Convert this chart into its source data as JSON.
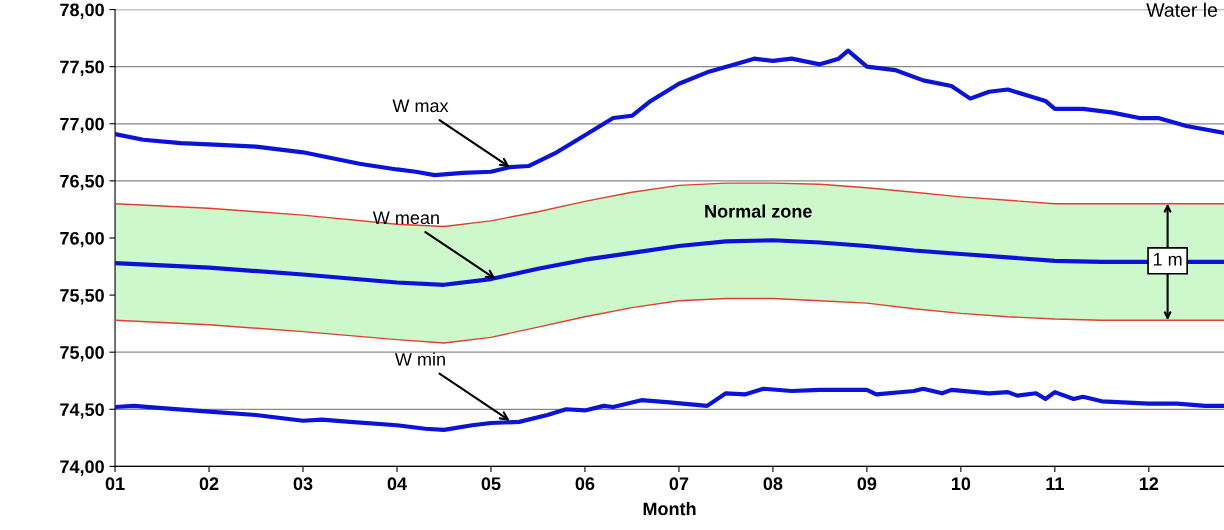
{
  "chart_data": {
    "type": "line",
    "title": "Water le",
    "xlabel": "Month",
    "xlim": [
      1,
      12.8
    ],
    "xticks": [
      {
        "value": 1,
        "label": "01"
      },
      {
        "value": 2,
        "label": "02"
      },
      {
        "value": 3,
        "label": "03"
      },
      {
        "value": 4,
        "label": "04"
      },
      {
        "value": 5,
        "label": "05"
      },
      {
        "value": 6,
        "label": "06"
      },
      {
        "value": 7,
        "label": "07"
      },
      {
        "value": 8,
        "label": "08"
      },
      {
        "value": 9,
        "label": "09"
      },
      {
        "value": 10,
        "label": "10"
      },
      {
        "value": 11,
        "label": "11"
      },
      {
        "value": 12,
        "label": "12"
      }
    ],
    "ylim": [
      74,
      78
    ],
    "yticks": [
      {
        "value": 74,
        "label": "74,00"
      },
      {
        "value": 74.5,
        "label": "74,50"
      },
      {
        "value": 75,
        "label": "75,00"
      },
      {
        "value": 75.5,
        "label": "75,50"
      },
      {
        "value": 76,
        "label": "76,00"
      },
      {
        "value": 76.5,
        "label": "76,50"
      },
      {
        "value": 77,
        "label": "77,00"
      },
      {
        "value": 77.5,
        "label": "77,50"
      },
      {
        "value": 78,
        "label": "78,00"
      }
    ],
    "grid": "y",
    "marker": "none",
    "line_style": "solid",
    "series": [
      {
        "color": "#0a14d8",
        "x": [
          1,
          1.3,
          1.7,
          2,
          2.5,
          3,
          3.3,
          3.6,
          4,
          4.2,
          4.4,
          4.7,
          5,
          5.2,
          5.4,
          5.7,
          6,
          6.3,
          6.5,
          6.7,
          7,
          7.3,
          7.6,
          7.8,
          8,
          8.2,
          8.5,
          8.7,
          8.8,
          9,
          9.3,
          9.6,
          9.9,
          10.1,
          10.3,
          10.5,
          10.7,
          10.9,
          11,
          11.3,
          11.6,
          11.9,
          12.1,
          12.4,
          12.8
        ],
        "values": [
          76.91,
          76.86,
          76.83,
          76.82,
          76.8,
          76.75,
          76.7,
          76.65,
          76.6,
          76.58,
          76.55,
          76.57,
          76.58,
          76.62,
          76.63,
          76.75,
          76.9,
          77.05,
          77.07,
          77.2,
          77.35,
          77.45,
          77.52,
          77.57,
          77.55,
          77.57,
          77.52,
          77.57,
          77.64,
          77.5,
          77.47,
          77.38,
          77.33,
          77.22,
          77.28,
          77.3,
          77.25,
          77.2,
          77.13,
          77.13,
          77.1,
          77.05,
          77.05,
          76.98,
          76.92
        ]
      },
      {
        "color": "#0a14d8",
        "x": [
          1,
          2,
          3,
          4,
          4.5,
          5,
          5.5,
          6,
          6.5,
          7,
          7.5,
          8,
          8.5,
          9,
          9.5,
          10,
          10.5,
          11,
          11.5,
          12,
          12.8
        ],
        "values": [
          75.78,
          75.74,
          75.68,
          75.61,
          75.59,
          75.64,
          75.73,
          75.81,
          75.87,
          75.93,
          75.97,
          75.98,
          75.96,
          75.93,
          75.89,
          75.86,
          75.83,
          75.8,
          75.79,
          75.79,
          75.79
        ],
        "upper": [
          76.3,
          76.26,
          76.2,
          76.12,
          76.1,
          76.15,
          76.23,
          76.32,
          76.4,
          76.46,
          76.48,
          76.48,
          76.47,
          76.44,
          76.4,
          76.36,
          76.33,
          76.3,
          76.3,
          76.3,
          76.3
        ],
        "lower": [
          75.28,
          75.24,
          75.18,
          75.11,
          75.08,
          75.13,
          75.22,
          75.31,
          75.39,
          75.45,
          75.47,
          75.47,
          75.45,
          75.43,
          75.38,
          75.34,
          75.31,
          75.29,
          75.28,
          75.28,
          75.28
        ]
      },
      {
        "color": "#0a14d8",
        "x": [
          1,
          1.2,
          1.5,
          2,
          2.5,
          3,
          3.2,
          3.5,
          4,
          4.3,
          4.5,
          4.8,
          5,
          5.3,
          5.6,
          5.8,
          6,
          6.2,
          6.3,
          6.6,
          6.9,
          7.3,
          7.5,
          7.7,
          7.9,
          8.2,
          8.5,
          9,
          9.1,
          9.5,
          9.6,
          9.8,
          9.9,
          10.3,
          10.5,
          10.6,
          10.8,
          10.9,
          11,
          11.2,
          11.3,
          11.5,
          12,
          12.3,
          12.6,
          12.8
        ],
        "values": [
          74.52,
          74.53,
          74.51,
          74.48,
          74.45,
          74.4,
          74.41,
          74.39,
          74.36,
          74.33,
          74.32,
          74.36,
          74.38,
          74.39,
          74.45,
          74.5,
          74.49,
          74.53,
          74.52,
          74.58,
          74.56,
          74.53,
          74.64,
          74.63,
          74.68,
          74.66,
          74.67,
          74.67,
          74.63,
          74.66,
          74.68,
          74.64,
          74.67,
          74.64,
          74.65,
          74.62,
          74.64,
          74.59,
          74.65,
          74.59,
          74.61,
          74.57,
          74.55,
          74.55,
          74.53,
          74.53
        ]
      },
      {
        "color": "#e04030",
        "x": [
          1,
          2,
          3,
          4,
          4.5,
          5,
          5.5,
          6,
          6.5,
          7,
          7.5,
          8,
          8.5,
          9,
          9.5,
          10,
          10.5,
          11,
          11.5,
          12,
          12.8
        ],
        "values": [
          76.3,
          76.26,
          76.2,
          76.12,
          76.1,
          76.15,
          76.23,
          76.32,
          76.4,
          76.46,
          76.48,
          76.48,
          76.47,
          76.44,
          76.4,
          76.36,
          76.33,
          76.3,
          76.3,
          76.3,
          76.3
        ]
      },
      {
        "color": "#e04030",
        "x": [
          1,
          2,
          3,
          4,
          4.5,
          5,
          5.5,
          6,
          6.5,
          7,
          7.5,
          8,
          8.5,
          9,
          9.5,
          10,
          10.5,
          11,
          11.5,
          12,
          12.8
        ],
        "values": [
          75.28,
          75.24,
          75.18,
          75.11,
          75.08,
          75.13,
          75.22,
          75.31,
          75.39,
          75.45,
          75.47,
          75.47,
          75.45,
          75.43,
          75.38,
          75.34,
          75.31,
          75.29,
          75.28,
          75.28,
          75.28
        ]
      }
    ],
    "annotations": [
      {
        "text": "W max",
        "x": 5.2,
        "y": 76.62
      },
      {
        "text": "W mean",
        "x": 5.05,
        "y": 75.64
      },
      {
        "text": "W min",
        "x": 5.2,
        "y": 74.4
      },
      "Normal zone",
      {
        "text": "1 m",
        "x": 12.2,
        "y": 75.8
      }
    ]
  }
}
